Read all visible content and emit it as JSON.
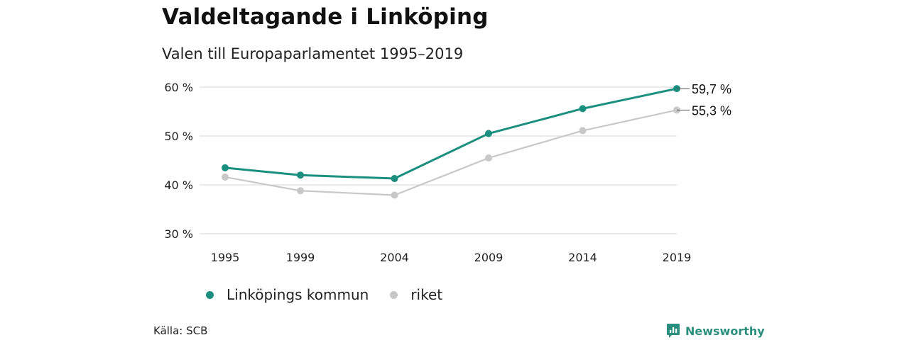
{
  "header": {
    "title": "Valdeltagande i Linköping",
    "subtitle": "Valen till Europaparlamentet 1995–2019"
  },
  "footer": {
    "source": "Källa: SCB",
    "brand": "Newsworthy",
    "brand_icon": "newsworthy-logo-icon"
  },
  "colors": {
    "linkoping": "#1a8f80",
    "riket": "#c8c8c8",
    "grid": "#dddddd",
    "brand": "#2a8f7e"
  },
  "chart_data": {
    "type": "line",
    "x": [
      "1995",
      "1999",
      "2004",
      "2009",
      "2014",
      "2019"
    ],
    "x_values": [
      1995,
      1999,
      2004,
      2009,
      2014,
      2019
    ],
    "ylim": [
      30,
      60
    ],
    "yticks": [
      30,
      40,
      50,
      60
    ],
    "ytick_labels": [
      "30 %",
      "40 %",
      "50 %",
      "60 %"
    ],
    "grid": true,
    "legend_position": "bottom-left",
    "series": [
      {
        "name": "Linköpings kommun",
        "values": [
          43.5,
          42.0,
          41.3,
          50.5,
          55.6,
          59.7
        ],
        "end_label": "59,7 %",
        "color": "#1a8f80"
      },
      {
        "name": "riket",
        "values": [
          41.6,
          38.8,
          37.9,
          45.5,
          51.1,
          55.3
        ],
        "end_label": "55,3 %",
        "color": "#c8c8c8"
      }
    ]
  }
}
